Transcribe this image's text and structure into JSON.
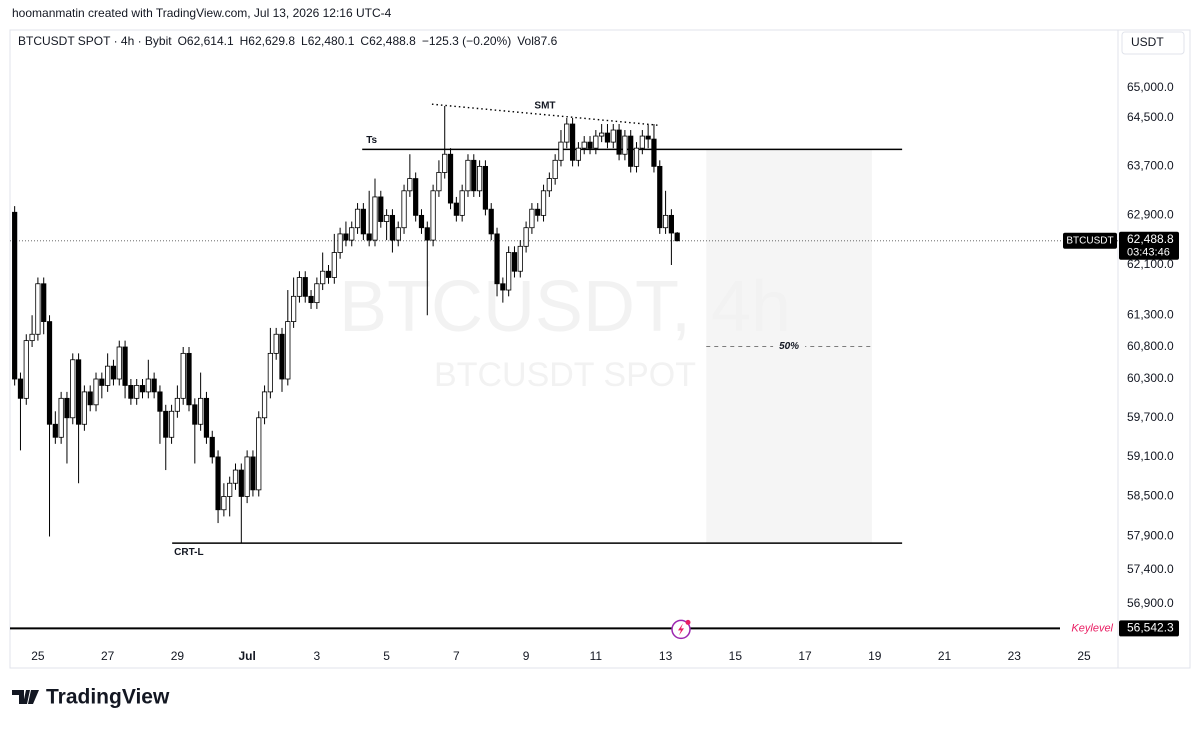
{
  "header": "hoomanmatin created with TradingView.com, Jul 13, 2026 12:16 UTC-4",
  "brand": "TradingView",
  "chart_data": {
    "type": "candlestick",
    "symbol": "BTCUSDT SPOT · 4h · Bybit",
    "legend": [
      "O62,614.1",
      "H62,629.8",
      "L62,480.1",
      "C62,488.8",
      "−125.3 (−0.20%)",
      "Vol87.6"
    ],
    "watermark": [
      "BTCUSDT, 4h",
      "BTCUSDT SPOT"
    ],
    "currency": "USDT",
    "log_scale": true,
    "grid": false,
    "up_color": "#ffffff",
    "down_color": "#000000",
    "x": [
      -4,
      -3,
      -2,
      -1,
      0,
      1,
      2,
      3,
      4,
      5,
      6,
      7,
      8,
      9,
      10,
      11,
      12,
      13,
      14,
      15,
      16,
      17,
      18,
      19,
      20,
      21,
      22,
      23,
      24,
      25,
      26,
      27,
      28,
      29,
      30,
      31,
      32,
      33,
      34,
      35,
      36,
      37,
      38,
      39,
      40,
      41,
      42,
      43,
      44,
      45,
      46,
      47,
      48,
      49,
      50,
      51,
      52,
      53,
      54,
      55,
      56,
      57,
      58,
      59,
      60,
      61,
      62,
      63,
      64,
      65,
      66,
      67,
      68,
      69,
      70,
      71,
      72,
      73,
      74,
      75,
      76,
      77,
      78,
      79,
      80,
      81,
      82,
      83,
      84,
      85,
      86,
      87,
      88,
      89,
      90,
      91,
      92,
      93,
      94,
      95,
      96,
      97,
      98,
      99,
      100,
      101,
      102,
      103,
      104,
      105,
      106,
      107,
      108,
      109,
      110
    ],
    "open": [
      62950,
      60300,
      60000,
      60900,
      61000,
      61800,
      61200,
      59600,
      59400,
      60000,
      59700,
      60600,
      59600,
      60100,
      59900,
      60300,
      60200,
      60500,
      60300,
      60800,
      60200,
      60000,
      60200,
      60100,
      60300,
      60100,
      59800,
      59400,
      59800,
      60000,
      60700,
      59900,
      59600,
      60000,
      59400,
      59100,
      58300,
      58500,
      58700,
      58900,
      58500,
      59100,
      58600,
      59700,
      60100,
      60700,
      61000,
      60300,
      61200,
      61600,
      61900,
      61600,
      61500,
      61800,
      62000,
      61900,
      62300,
      62600,
      62500,
      62700,
      63000,
      62600,
      62500,
      63200,
      62800,
      62900,
      62500,
      62700,
      63300,
      63500,
      62900,
      62700,
      62500,
      63300,
      63600,
      63900,
      63100,
      62900,
      63300,
      63800,
      63300,
      63700,
      63000,
      62600,
      61800,
      61700,
      62300,
      62000,
      62400,
      62700,
      63000,
      62900,
      63300,
      63500,
      63800,
      64100,
      64400,
      63800,
      64000,
      64100,
      64000,
      64200,
      64250,
      64100,
      64300,
      63900,
      64200,
      63700,
      64000,
      64200,
      64150,
      63700,
      62700,
      62900,
      62614.1
    ],
    "high": [
      63050,
      60400,
      61000,
      61300,
      61900,
      61900,
      61300,
      59800,
      60100,
      60100,
      60700,
      60700,
      60200,
      60200,
      60400,
      60400,
      60700,
      60600,
      60900,
      60900,
      60300,
      60300,
      60300,
      60600,
      60400,
      60200,
      59900,
      59900,
      60200,
      60800,
      60800,
      60000,
      60400,
      60100,
      59500,
      59200,
      58700,
      58800,
      59000,
      59000,
      59200,
      59200,
      59800,
      60200,
      61100,
      61100,
      61100,
      61700,
      61900,
      62000,
      62000,
      61700,
      61900,
      62300,
      62100,
      62600,
      62700,
      62800,
      62800,
      63100,
      63100,
      63300,
      63500,
      63300,
      63000,
      63000,
      62800,
      63400,
      63900,
      63600,
      63000,
      62800,
      63400,
      63800,
      64700,
      64000,
      63200,
      63400,
      63900,
      63900,
      63800,
      63800,
      63100,
      62700,
      61900,
      62400,
      62400,
      62500,
      62800,
      63100,
      63100,
      63400,
      63600,
      63900,
      64300,
      64500,
      64500,
      64100,
      64200,
      64200,
      64300,
      64400,
      64400,
      64400,
      64400,
      64300,
      64300,
      64100,
      64300,
      64400,
      64400,
      63800,
      63300,
      63000,
      62629.8
    ],
    "low": [
      60200,
      59200,
      59900,
      60800,
      60900,
      61000,
      57900,
      59300,
      59300,
      59000,
      59600,
      58700,
      59500,
      59800,
      59800,
      60000,
      60100,
      60200,
      60200,
      60000,
      59900,
      59900,
      60000,
      60000,
      60000,
      59300,
      58900,
      59300,
      59700,
      59900,
      59800,
      59000,
      59500,
      59300,
      59000,
      58100,
      58200,
      58200,
      58600,
      57800,
      58400,
      58500,
      58500,
      59600,
      60000,
      60600,
      60100,
      60200,
      61100,
      61500,
      61500,
      61400,
      61400,
      61700,
      61800,
      61800,
      62200,
      62400,
      62400,
      62600,
      62500,
      62400,
      62400,
      62700,
      62500,
      62300,
      62400,
      62600,
      63200,
      62800,
      62600,
      61300,
      62400,
      63200,
      63500,
      63000,
      62800,
      62800,
      63200,
      63200,
      63200,
      62900,
      62500,
      61600,
      61500,
      61600,
      61900,
      61900,
      62300,
      62600,
      62800,
      62800,
      63200,
      63400,
      63700,
      64000,
      63700,
      63700,
      63900,
      63900,
      63900,
      64100,
      64000,
      64000,
      63800,
      63800,
      63600,
      63600,
      63900,
      64000,
      63600,
      62600,
      62600,
      62100,
      62480.1
    ],
    "close": [
      60300,
      60000,
      60900,
      61000,
      61800,
      61200,
      59600,
      59400,
      60000,
      59700,
      60600,
      59600,
      60100,
      59900,
      60300,
      60200,
      60500,
      60300,
      60800,
      60200,
      60000,
      60200,
      60100,
      60300,
      60100,
      59800,
      59400,
      59800,
      60000,
      60700,
      59900,
      59600,
      60000,
      59400,
      59100,
      58300,
      58500,
      58700,
      58900,
      58500,
      59100,
      58600,
      59700,
      60100,
      60700,
      61000,
      60300,
      61200,
      61600,
      61900,
      61600,
      61500,
      61800,
      62000,
      61900,
      62300,
      62600,
      62500,
      62700,
      63000,
      62600,
      62500,
      63200,
      62800,
      62900,
      62500,
      62700,
      63300,
      63500,
      62900,
      62700,
      62500,
      63300,
      63600,
      63900,
      63100,
      62900,
      63300,
      63800,
      63300,
      63700,
      63000,
      62600,
      61800,
      61700,
      62300,
      62000,
      62400,
      62700,
      63000,
      62900,
      63300,
      63500,
      63800,
      64100,
      64400,
      63800,
      64000,
      64100,
      64000,
      64200,
      64250,
      64100,
      64300,
      63900,
      64200,
      63700,
      64000,
      64200,
      64150,
      63700,
      62700,
      62900,
      62614.1,
      62488.8
    ],
    "xlim": [
      -4.8,
      185.5
    ],
    "ylim": [
      56330,
      65930
    ],
    "xticks": [
      {
        "value": 0,
        "label": "25"
      },
      {
        "value": 12,
        "label": "27"
      },
      {
        "value": 24,
        "label": "29"
      },
      {
        "value": 36,
        "label": "Jul"
      },
      {
        "value": 48,
        "label": "3"
      },
      {
        "value": 60,
        "label": "5"
      },
      {
        "value": 72,
        "label": "7"
      },
      {
        "value": 84,
        "label": "9"
      },
      {
        "value": 96,
        "label": "11"
      },
      {
        "value": 108,
        "label": "13"
      },
      {
        "value": 120,
        "label": "15"
      },
      {
        "value": 132,
        "label": "17"
      },
      {
        "value": 144,
        "label": "19"
      },
      {
        "value": 156,
        "label": "21"
      },
      {
        "value": 168,
        "label": "23"
      },
      {
        "value": 180,
        "label": "25"
      }
    ],
    "yticks": [
      {
        "value": 65000,
        "label": "65,000.0"
      },
      {
        "value": 64500,
        "label": "64,500.0"
      },
      {
        "value": 63700,
        "label": "63,700.0"
      },
      {
        "value": 62900,
        "label": "62,900.0"
      },
      {
        "value": 62100,
        "label": "62,100.0"
      },
      {
        "value": 61300,
        "label": "61,300.0"
      },
      {
        "value": 60800,
        "label": "60,800.0"
      },
      {
        "value": 60300,
        "label": "60,300.0"
      },
      {
        "value": 59700,
        "label": "59,700.0"
      },
      {
        "value": 59100,
        "label": "59,100.0"
      },
      {
        "value": 58500,
        "label": "58,500.0"
      },
      {
        "value": 57900,
        "label": "57,900.0"
      },
      {
        "value": 57400,
        "label": "57,400.0"
      },
      {
        "value": 56900,
        "label": "56,900.0"
      }
    ],
    "price_tag": {
      "symbol": "BTCUSDT",
      "label": "62,488.8",
      "countdown": "03:43:46"
    },
    "keylevel": {
      "label": "Keylevel",
      "value": 56542.3,
      "value_label": "56,542.3",
      "color": "#e91e63"
    },
    "lines": [
      {
        "label": "Ts",
        "price": 63980,
        "x": [
          55.8,
          148.7
        ]
      },
      {
        "label": "CRT-L",
        "price": 57800,
        "x": [
          23.1,
          148.7
        ]
      }
    ],
    "smt": {
      "label": "SMT",
      "x": [
        67.8,
        106.7
      ],
      "price": [
        64730,
        64380
      ]
    },
    "zone": {
      "x": [
        115,
        143.5
      ],
      "price": [
        63980,
        57800
      ],
      "mid_price": 60810,
      "mid_label": "50%",
      "color": "#f5f5f5"
    }
  }
}
